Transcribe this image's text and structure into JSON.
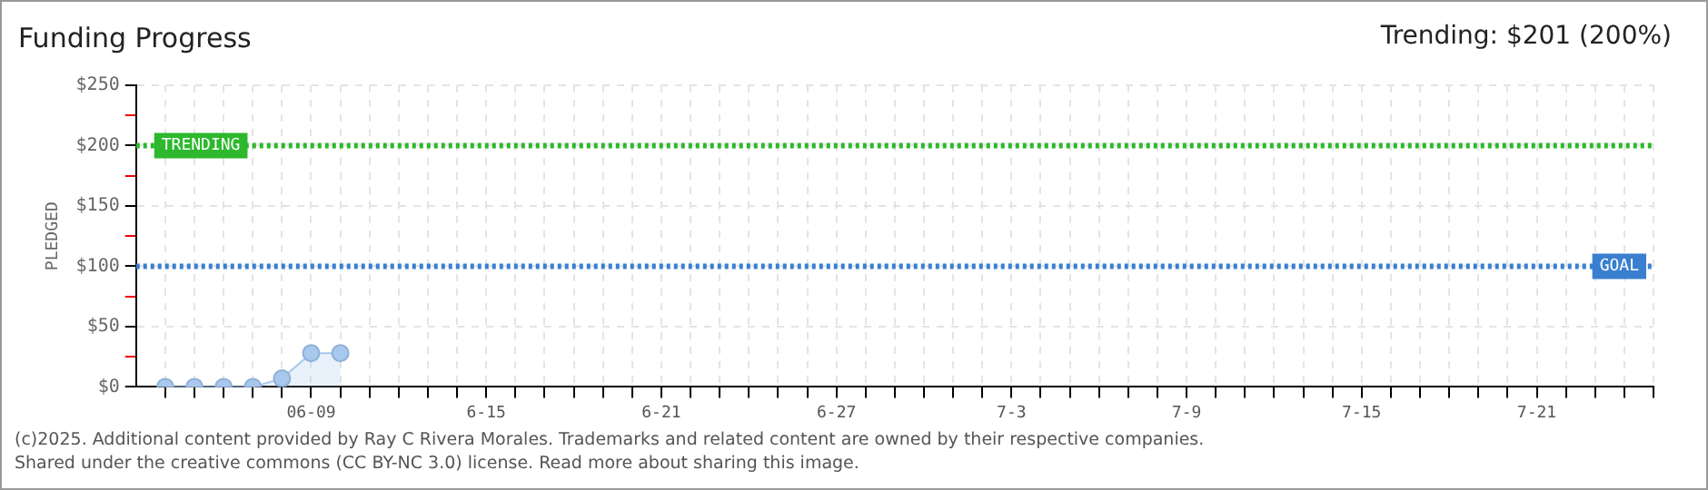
{
  "chart_data": {
    "type": "area",
    "title": "Funding Progress",
    "ylabel": "PLEDGED",
    "annotations": [
      "Trending: $201 (200%)",
      "(c)2025. Additional content provided by Ray C Rivera Morales. Trademarks and related content are owned by their respective companies.",
      "Shared under the creative commons (CC BY-NC 3.0) license. Read more about sharing this image."
    ],
    "x": [
      "2025-06-04",
      "2025-06-05",
      "2025-06-06",
      "2025-06-07",
      "2025-06-08",
      "2025-06-09",
      "2025-06-10"
    ],
    "series": [
      {
        "color": "#a8c8ee",
        "values": [
          0,
          0,
          0,
          0,
          7,
          28,
          28
        ]
      }
    ],
    "xlim": [
      "2025-06-03",
      "2025-07-25"
    ],
    "xticks": [
      {
        "value": "2025-06-04",
        "label": null
      },
      {
        "value": "2025-06-05",
        "label": null
      },
      {
        "value": "2025-06-06",
        "label": null
      },
      {
        "value": "2025-06-07",
        "label": null
      },
      {
        "value": "2025-06-08",
        "label": null
      },
      {
        "value": "2025-06-09",
        "label": "06-09"
      },
      {
        "value": "2025-06-10",
        "label": null
      },
      {
        "value": "2025-06-11",
        "label": null
      },
      {
        "value": "2025-06-12",
        "label": null
      },
      {
        "value": "2025-06-13",
        "label": null
      },
      {
        "value": "2025-06-14",
        "label": null
      },
      {
        "value": "2025-06-15",
        "label": "6-15"
      },
      {
        "value": "2025-06-16",
        "label": null
      },
      {
        "value": "2025-06-17",
        "label": null
      },
      {
        "value": "2025-06-18",
        "label": null
      },
      {
        "value": "2025-06-19",
        "label": null
      },
      {
        "value": "2025-06-20",
        "label": null
      },
      {
        "value": "2025-06-21",
        "label": "6-21"
      },
      {
        "value": "2025-06-22",
        "label": null
      },
      {
        "value": "2025-06-23",
        "label": null
      },
      {
        "value": "2025-06-24",
        "label": null
      },
      {
        "value": "2025-06-25",
        "label": null
      },
      {
        "value": "2025-06-26",
        "label": null
      },
      {
        "value": "2025-06-27",
        "label": "6-27"
      },
      {
        "value": "2025-06-28",
        "label": null
      },
      {
        "value": "2025-06-29",
        "label": null
      },
      {
        "value": "2025-06-30",
        "label": null
      },
      {
        "value": "2025-07-01",
        "label": null
      },
      {
        "value": "2025-07-02",
        "label": null
      },
      {
        "value": "2025-07-03",
        "label": "7-3"
      },
      {
        "value": "2025-07-04",
        "label": null
      },
      {
        "value": "2025-07-05",
        "label": null
      },
      {
        "value": "2025-07-06",
        "label": null
      },
      {
        "value": "2025-07-07",
        "label": null
      },
      {
        "value": "2025-07-08",
        "label": null
      },
      {
        "value": "2025-07-09",
        "label": "7-9"
      },
      {
        "value": "2025-07-10",
        "label": null
      },
      {
        "value": "2025-07-11",
        "label": null
      },
      {
        "value": "2025-07-12",
        "label": null
      },
      {
        "value": "2025-07-13",
        "label": null
      },
      {
        "value": "2025-07-14",
        "label": null
      },
      {
        "value": "2025-07-15",
        "label": "7-15"
      },
      {
        "value": "2025-07-16",
        "label": null
      },
      {
        "value": "2025-07-17",
        "label": null
      },
      {
        "value": "2025-07-18",
        "label": null
      },
      {
        "value": "2025-07-19",
        "label": null
      },
      {
        "value": "2025-07-20",
        "label": null
      },
      {
        "value": "2025-07-21",
        "label": "7-21"
      },
      {
        "value": "2025-07-22",
        "label": null
      },
      {
        "value": "2025-07-23",
        "label": null
      },
      {
        "value": "2025-07-24",
        "label": null
      },
      {
        "value": "2025-07-25",
        "label": null
      }
    ],
    "ylim": [
      0,
      250
    ],
    "yticks": [
      {
        "value": 0,
        "label": "$0"
      },
      {
        "value": 25,
        "label": null
      },
      {
        "value": 50,
        "label": "$50"
      },
      {
        "value": 75,
        "label": null
      },
      {
        "value": 100,
        "label": "$100"
      },
      {
        "value": 125,
        "label": null
      },
      {
        "value": 150,
        "label": "$150"
      },
      {
        "value": 175,
        "label": null
      },
      {
        "value": 200,
        "label": "$200"
      },
      {
        "value": 225,
        "label": null
      },
      {
        "value": 250,
        "label": "$250"
      }
    ],
    "ref_lines": [
      {
        "axis": "y",
        "value": 200,
        "label": "TRENDING",
        "color": "#2db82d",
        "line_style": "dotted"
      },
      {
        "axis": "y",
        "value": 100,
        "label": "GOAL",
        "color": "#3a7fcf",
        "line_style": "dotted"
      }
    ],
    "grid": true,
    "marker": "circle",
    "legend": false
  }
}
